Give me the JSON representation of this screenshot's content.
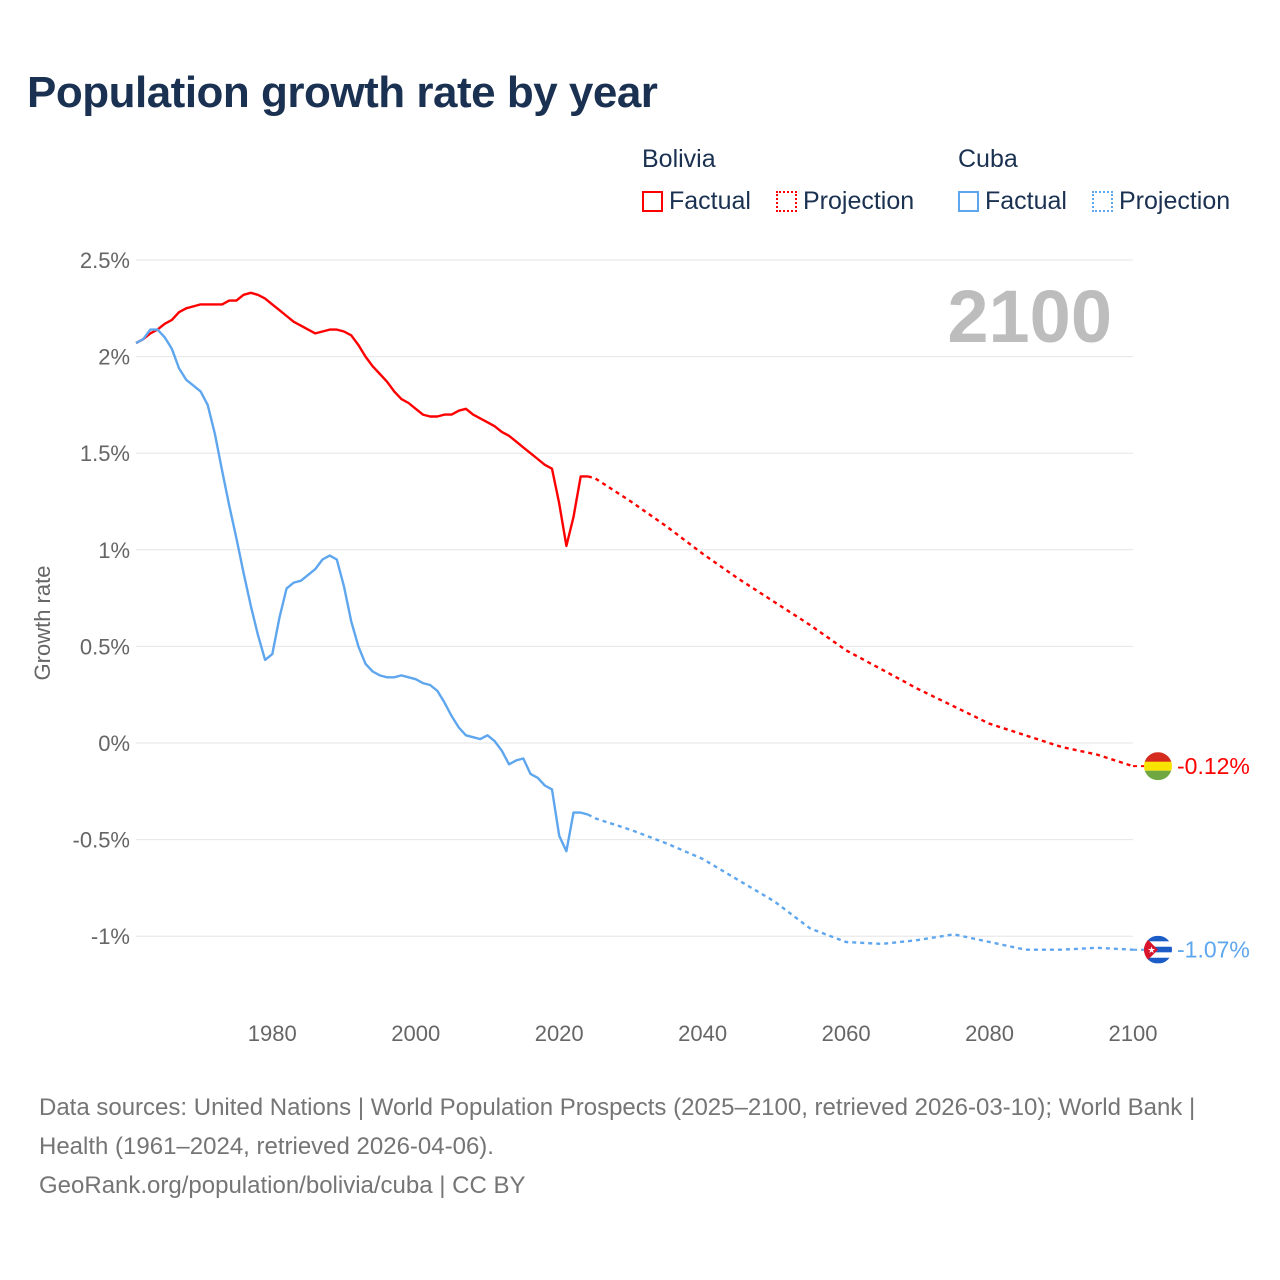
{
  "chart_data": {
    "type": "line",
    "title": "Population growth rate by year",
    "ylabel": "Growth rate",
    "xlabel": "",
    "year_watermark": "2100",
    "xlim": [
      1961,
      2100
    ],
    "ylim": [
      -1.3,
      2.5
    ],
    "x_ticks": [
      1980,
      2000,
      2020,
      2040,
      2060,
      2080,
      2100
    ],
    "x_tick_labels": [
      "1980",
      "2000",
      "2020",
      "2040",
      "2060",
      "2080",
      "2100"
    ],
    "y_ticks": [
      2.5,
      2,
      1.5,
      1,
      0.5,
      0,
      -0.5,
      -1
    ],
    "y_tick_labels": [
      "2.5%",
      "2%",
      "1.5%",
      "1%",
      "0.5%",
      "0%",
      "-0.5%",
      "-1%"
    ],
    "grid": true,
    "legend_placement": "top-right",
    "legend": {
      "groups": [
        {
          "name": "Bolivia",
          "factual": "Factual",
          "projection": "Projection"
        },
        {
          "name": "Cuba",
          "factual": "Factual",
          "projection": "Projection"
        }
      ]
    },
    "series": [
      {
        "name": "Bolivia",
        "color": "#ff0000",
        "end_label": "-0.12%",
        "factual": {
          "x": [
            1961,
            1962,
            1963,
            1964,
            1965,
            1966,
            1967,
            1968,
            1969,
            1970,
            1971,
            1972,
            1973,
            1974,
            1975,
            1976,
            1977,
            1978,
            1979,
            1980,
            1981,
            1982,
            1983,
            1984,
            1985,
            1986,
            1987,
            1988,
            1989,
            1990,
            1991,
            1992,
            1993,
            1994,
            1995,
            1996,
            1997,
            1998,
            1999,
            2000,
            2001,
            2002,
            2003,
            2004,
            2005,
            2006,
            2007,
            2008,
            2009,
            2010,
            2011,
            2012,
            2013,
            2014,
            2015,
            2016,
            2017,
            2018,
            2019,
            2020,
            2021,
            2022,
            2023,
            2024
          ],
          "y": [
            2.07,
            2.09,
            2.12,
            2.14,
            2.17,
            2.19,
            2.23,
            2.25,
            2.26,
            2.27,
            2.27,
            2.27,
            2.27,
            2.29,
            2.29,
            2.32,
            2.33,
            2.32,
            2.3,
            2.27,
            2.24,
            2.21,
            2.18,
            2.16,
            2.14,
            2.12,
            2.13,
            2.14,
            2.14,
            2.13,
            2.11,
            2.06,
            2.0,
            1.95,
            1.91,
            1.87,
            1.82,
            1.78,
            1.76,
            1.73,
            1.7,
            1.69,
            1.69,
            1.7,
            1.7,
            1.72,
            1.73,
            1.7,
            1.68,
            1.66,
            1.64,
            1.61,
            1.59,
            1.56,
            1.53,
            1.5,
            1.47,
            1.44,
            1.42,
            1.24,
            1.02,
            1.17,
            1.38,
            1.38
          ]
        },
        "projection": {
          "x": [
            2024,
            2025,
            2030,
            2035,
            2040,
            2045,
            2050,
            2055,
            2060,
            2065,
            2070,
            2075,
            2080,
            2085,
            2090,
            2095,
            2100
          ],
          "y": [
            1.38,
            1.37,
            1.25,
            1.12,
            0.98,
            0.85,
            0.73,
            0.61,
            0.48,
            0.38,
            0.28,
            0.19,
            0.1,
            0.04,
            -0.02,
            -0.06,
            -0.12
          ]
        }
      },
      {
        "name": "Cuba",
        "color": "#5ea6ee",
        "end_label": "-1.07%",
        "factual": {
          "x": [
            1961,
            1962,
            1963,
            1964,
            1965,
            1966,
            1967,
            1968,
            1969,
            1970,
            1971,
            1972,
            1973,
            1974,
            1975,
            1976,
            1977,
            1978,
            1979,
            1980,
            1981,
            1982,
            1983,
            1984,
            1985,
            1986,
            1987,
            1988,
            1989,
            1990,
            1991,
            1992,
            1993,
            1994,
            1995,
            1996,
            1997,
            1998,
            1999,
            2000,
            2001,
            2002,
            2003,
            2004,
            2005,
            2006,
            2007,
            2008,
            2009,
            2010,
            2011,
            2012,
            2013,
            2014,
            2015,
            2016,
            2017,
            2018,
            2019,
            2020,
            2021,
            2022,
            2023,
            2024
          ],
          "y": [
            2.07,
            2.09,
            2.14,
            2.14,
            2.1,
            2.04,
            1.94,
            1.88,
            1.85,
            1.82,
            1.75,
            1.6,
            1.41,
            1.23,
            1.06,
            0.88,
            0.71,
            0.56,
            0.43,
            0.46,
            0.65,
            0.8,
            0.83,
            0.84,
            0.87,
            0.9,
            0.95,
            0.97,
            0.95,
            0.81,
            0.63,
            0.5,
            0.41,
            0.37,
            0.35,
            0.34,
            0.34,
            0.35,
            0.34,
            0.33,
            0.31,
            0.3,
            0.27,
            0.21,
            0.14,
            0.08,
            0.04,
            0.03,
            0.02,
            0.04,
            0.01,
            -0.04,
            -0.11,
            -0.09,
            -0.08,
            -0.16,
            -0.18,
            -0.22,
            -0.24,
            -0.48,
            -0.56,
            -0.36,
            -0.36,
            -0.37
          ]
        },
        "projection": {
          "x": [
            2024,
            2025,
            2030,
            2035,
            2040,
            2045,
            2050,
            2055,
            2060,
            2065,
            2070,
            2075,
            2080,
            2085,
            2090,
            2095,
            2100
          ],
          "y": [
            -0.37,
            -0.39,
            -0.45,
            -0.52,
            -0.6,
            -0.71,
            -0.82,
            -0.96,
            -1.03,
            -1.04,
            -1.02,
            -0.99,
            -1.03,
            -1.07,
            -1.07,
            -1.06,
            -1.07
          ]
        }
      }
    ]
  },
  "footer": {
    "source_line1": "Data sources: United Nations | World Population Prospects (2025–2100, retrieved 2026-03-10); World Bank | Health (1961–2024, retrieved 2026-04-06).",
    "source_line2": "GeoRank.org/population/bolivia/cuba | CC BY"
  }
}
